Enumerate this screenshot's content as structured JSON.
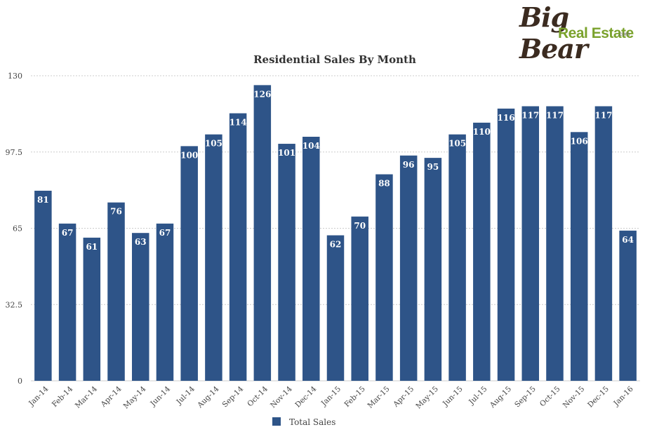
{
  "logo": {
    "line1": "Big Bear",
    "line2": "Real Estate",
    "suffix": ".com"
  },
  "colors": {
    "bar": "#2e5488",
    "grid": "#cccccc",
    "text": "#333333",
    "label": "#ffffff"
  },
  "chart_data": {
    "type": "bar",
    "title": "Residential Sales By Month",
    "xlabel": "",
    "ylabel": "",
    "ylim": [
      0,
      130
    ],
    "yticks": [
      "0",
      "32.5",
      "65",
      "97.5",
      "130"
    ],
    "grid": true,
    "legend": "bottom-center",
    "categories": [
      "Jan-14",
      "Feb-14",
      "Mar-14",
      "Apr-14",
      "May-14",
      "Jun-14",
      "Jul-14",
      "Aug-14",
      "Sep-14",
      "Oct-14",
      "Nov-14",
      "Dec-14",
      "Jan-15",
      "Feb-15",
      "Mar-15",
      "Apr-15",
      "May-15",
      "Jun-15",
      "Jul-15",
      "Aug-15",
      "Sep-15",
      "Oct-15",
      "Nov-15",
      "Dec-15",
      "Jan-16"
    ],
    "series": [
      {
        "name": "Total Sales",
        "values": [
          81,
          67,
          61,
          76,
          63,
          67,
          100,
          105,
          114,
          126,
          101,
          104,
          62,
          70,
          88,
          96,
          95,
          105,
          110,
          116,
          117,
          117,
          106,
          117,
          64
        ]
      }
    ]
  }
}
